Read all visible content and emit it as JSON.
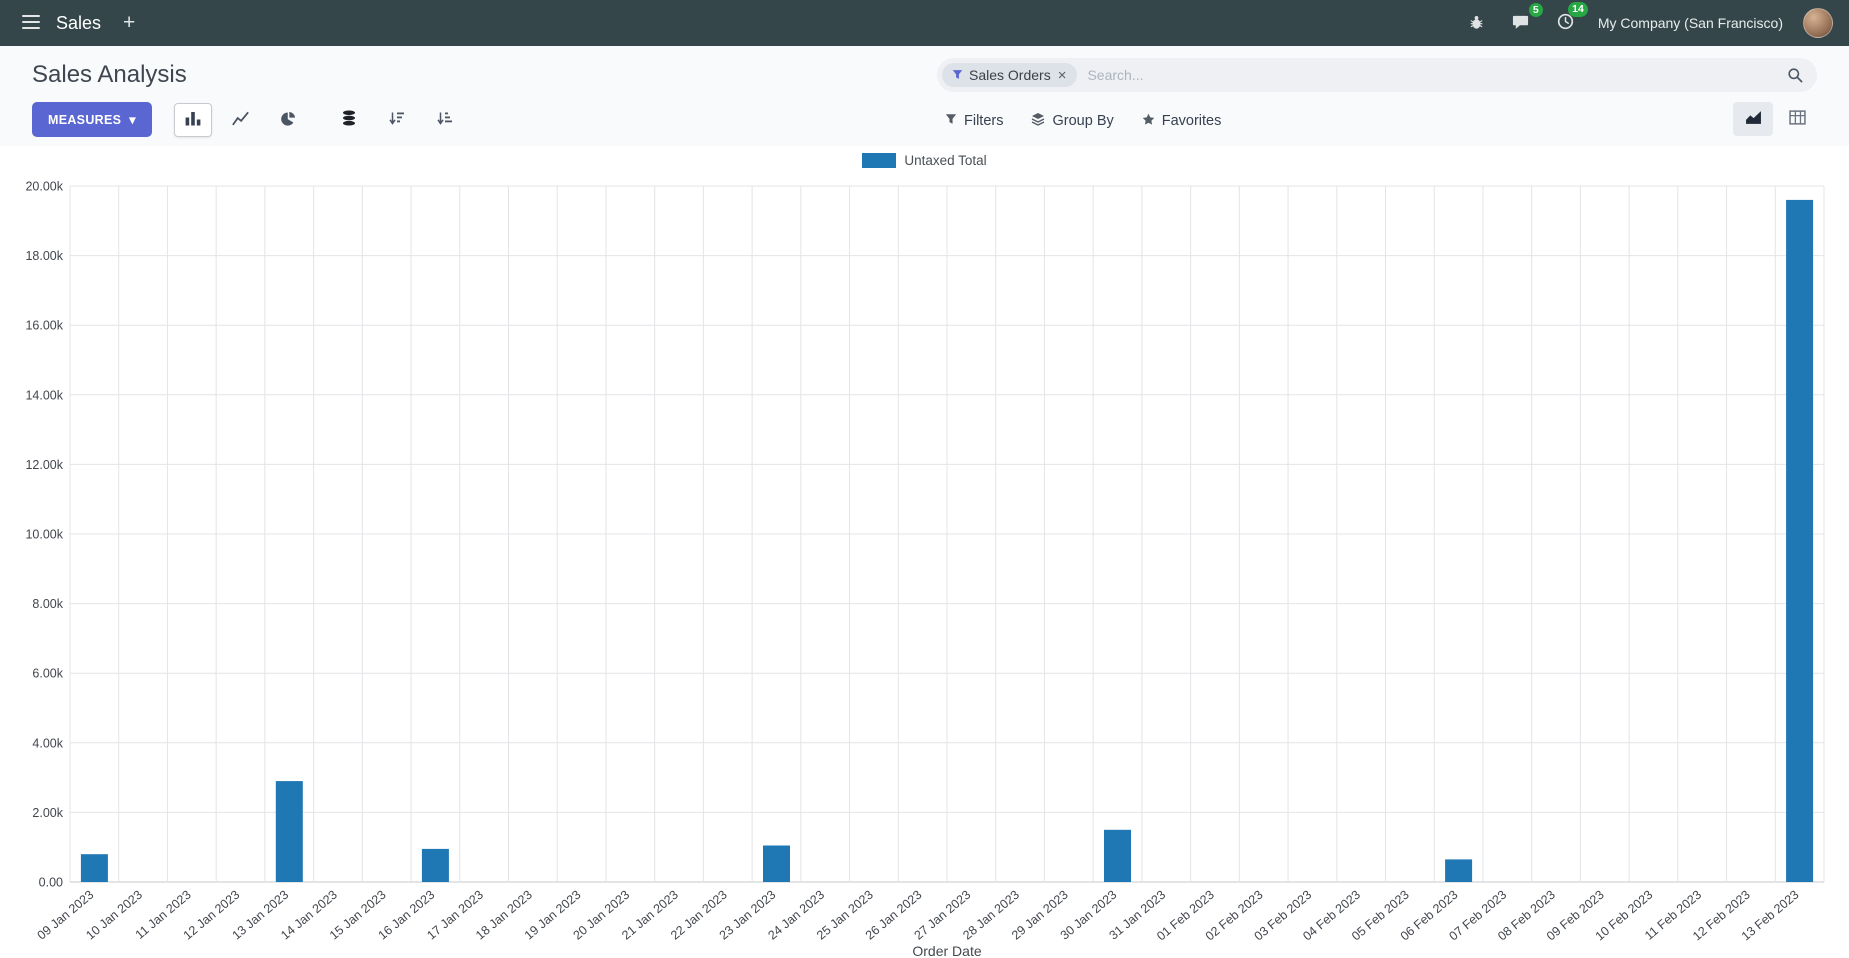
{
  "navbar": {
    "brand": "Sales",
    "company": "My Company (San Francisco)",
    "messages_badge": "5",
    "activities_badge": "14"
  },
  "icons": {
    "plus": "+",
    "caret_down": "▾",
    "close": "×"
  },
  "control_panel": {
    "title": "Sales Analysis",
    "measures_label": "MEASURES",
    "filters_label": "Filters",
    "group_by_label": "Group By",
    "favorites_label": "Favorites",
    "search": {
      "facet_label": "Sales Orders",
      "placeholder": "Search..."
    }
  },
  "chart_data": {
    "type": "bar",
    "title": "Sales Analysis",
    "xlabel": "Order Date",
    "ylabel": "",
    "ylim": [
      0,
      20000
    ],
    "y_tick_step": 2000,
    "y_tick_labels": [
      "0.00",
      "2.00k",
      "4.00k",
      "6.00k",
      "8.00k",
      "10.00k",
      "12.00k",
      "14.00k",
      "16.00k",
      "18.00k",
      "20.00k"
    ],
    "grid": true,
    "legend_position": "top",
    "legend": [
      {
        "name": "Untaxed Total",
        "color": "#1f77b4"
      }
    ],
    "categories": [
      "09 Jan 2023",
      "10 Jan 2023",
      "11 Jan 2023",
      "12 Jan 2023",
      "13 Jan 2023",
      "14 Jan 2023",
      "15 Jan 2023",
      "16 Jan 2023",
      "17 Jan 2023",
      "18 Jan 2023",
      "19 Jan 2023",
      "20 Jan 2023",
      "21 Jan 2023",
      "22 Jan 2023",
      "23 Jan 2023",
      "24 Jan 2023",
      "25 Jan 2023",
      "26 Jan 2023",
      "27 Jan 2023",
      "28 Jan 2023",
      "29 Jan 2023",
      "30 Jan 2023",
      "31 Jan 2023",
      "01 Feb 2023",
      "02 Feb 2023",
      "03 Feb 2023",
      "04 Feb 2023",
      "05 Feb 2023",
      "06 Feb 2023",
      "07 Feb 2023",
      "08 Feb 2023",
      "09 Feb 2023",
      "10 Feb 2023",
      "11 Feb 2023",
      "12 Feb 2023",
      "13 Feb 2023"
    ],
    "values": [
      800,
      0,
      0,
      0,
      2900,
      0,
      0,
      950,
      0,
      0,
      0,
      0,
      0,
      0,
      1050,
      0,
      0,
      0,
      0,
      0,
      0,
      1500,
      0,
      0,
      0,
      0,
      0,
      0,
      650,
      0,
      0,
      0,
      0,
      0,
      0,
      19600
    ]
  },
  "colors": {
    "navbar_bg": "#35464b",
    "primary": "#5a66d1",
    "badge_green": "#28a745",
    "bar_blue": "#1f77b4"
  }
}
